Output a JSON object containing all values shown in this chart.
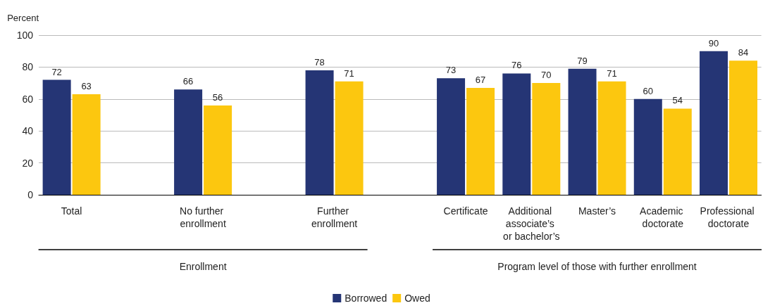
{
  "chart_data": {
    "type": "bar",
    "ylabel": "Percent",
    "categories": [
      "Total",
      null,
      "No further enrollment",
      null,
      "Further enrollment",
      null,
      "Certificate",
      "Additional associate’s or bachelor’s",
      "Master’s",
      "Academic doctorate",
      "Professional doctorate"
    ],
    "series": [
      {
        "name": "Borrowed",
        "color": "#253575",
        "values": [
          72,
          null,
          66,
          null,
          78,
          null,
          73,
          76,
          79,
          60,
          90
        ]
      },
      {
        "name": "Owed",
        "color": "#fcc70f",
        "values": [
          63,
          null,
          56,
          null,
          71,
          null,
          67,
          70,
          71,
          54,
          84
        ]
      }
    ],
    "ylim": [
      0,
      100
    ],
    "yticks": [
      0,
      20,
      40,
      60,
      80,
      100
    ],
    "grid": "y",
    "legend": "bottom",
    "data_labels": true,
    "annotations": [
      "Enrollment",
      "Program level of those with further enrollment"
    ]
  }
}
